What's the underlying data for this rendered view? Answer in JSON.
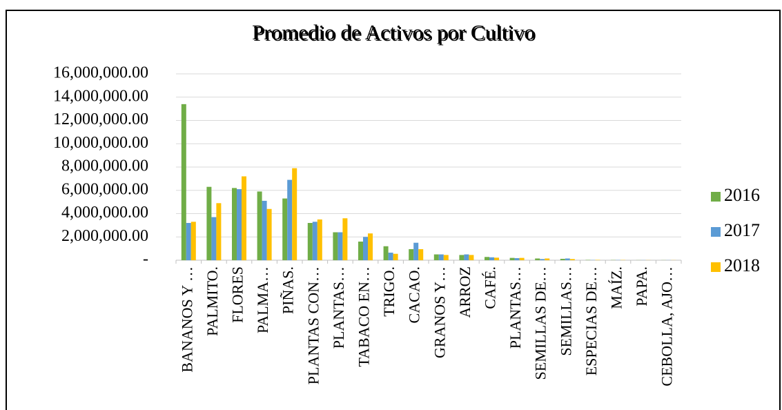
{
  "chart_data": {
    "type": "bar",
    "title": "Promedio de Activos por Cultivo",
    "categories": [
      "BANANOS Y …",
      "PALMITO.",
      "FLORES",
      "PALMA…",
      "PIÑAS.",
      "PLANTAS CON…",
      "PLANTAS…",
      "TABACO EN…",
      "TRIGO.",
      "CACAO.",
      "GRANOS Y…",
      "ARROZ",
      "CAFÉ.",
      "PLANTAS…",
      "SEMILLAS DE…",
      "SEMILLAS…",
      "ESPECIAS DE…",
      "MAÍZ.",
      "PAPA.",
      "CEBOLLA, AJO…"
    ],
    "series": [
      {
        "name": "2016",
        "color": "#70ad47",
        "values": [
          13400000,
          6300000,
          6200000,
          5900000,
          5300000,
          3200000,
          2400000,
          1600000,
          1200000,
          950000,
          500000,
          450000,
          280000,
          200000,
          150000,
          120000,
          30000,
          20000,
          10000,
          10000
        ]
      },
      {
        "name": "2017",
        "color": "#5b9bd5",
        "values": [
          3200000,
          3700000,
          6100000,
          5100000,
          6900000,
          3300000,
          2400000,
          2000000,
          650000,
          1500000,
          500000,
          500000,
          250000,
          180000,
          100000,
          150000,
          20000,
          20000,
          10000,
          10000
        ]
      },
      {
        "name": "2018",
        "color": "#ffc000",
        "values": [
          3300000,
          4900000,
          7200000,
          4400000,
          7900000,
          3500000,
          3600000,
          2300000,
          550000,
          950000,
          450000,
          450000,
          220000,
          200000,
          150000,
          100000,
          30000,
          20000,
          10000,
          10000
        ]
      }
    ],
    "ylim": [
      0,
      16000000
    ],
    "yticks": [
      {
        "value": 0,
        "label": "-"
      },
      {
        "value": 2000000,
        "label": "2,000,000.00"
      },
      {
        "value": 4000000,
        "label": "4,000,000.00"
      },
      {
        "value": 6000000,
        "label": "6,000,000.00"
      },
      {
        "value": 8000000,
        "label": "8,000,000.00"
      },
      {
        "value": 10000000,
        "label": "10,000,000.00"
      },
      {
        "value": 12000000,
        "label": "12,000,000.00"
      },
      {
        "value": 14000000,
        "label": "14,000,000.00"
      },
      {
        "value": 16000000,
        "label": "16,000,000.00"
      }
    ],
    "grid": true,
    "legend": "right"
  }
}
